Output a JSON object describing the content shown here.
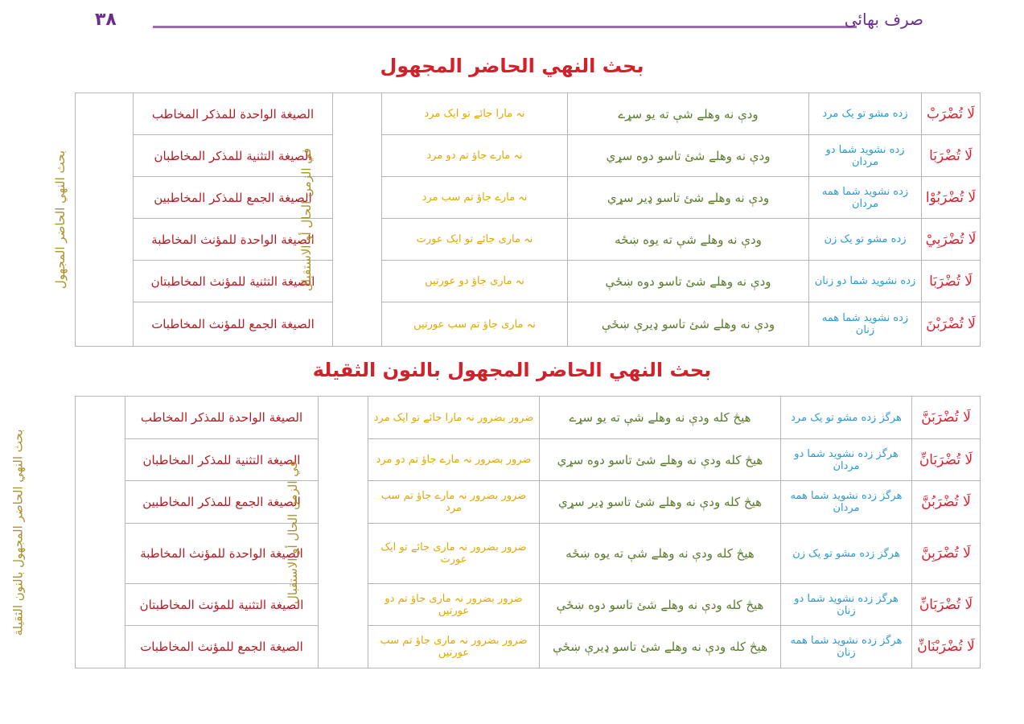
{
  "header": {
    "page_number": "۳۸",
    "book_title": "صرف بهائی"
  },
  "sections": [
    {
      "title": "بحث النهي الحاضر المجهول",
      "side_label": "بحث النهي الحاضر المجهول",
      "time_label": "في الزمن الحال أو الاستقبال",
      "rows": [
        {
          "verb": "لَا تُضْرَبْ",
          "persian": "زده مشو تو یک مرد",
          "pashto": "ودې نه وهلے شې ته يو سړے",
          "urdu": "نہ مارا جائے تو ایک مرد",
          "sigha": "الصيغة الواحدة للمذكر المخاطب"
        },
        {
          "verb": "لَا تُضْرَبَا",
          "persian": "زده نشوید شما دو مردان",
          "pashto": "ودې نه وهلے شئ تاسو دوه سړي",
          "urdu": "نہ مارے جاؤ تم دو مرد",
          "sigha": "الصيغة التثنية للمذكر المخاطبان"
        },
        {
          "verb": "لَا تُضْرَبُوْا",
          "persian": "زده نشوید شما همه مردان",
          "pashto": "ودې نه وهلے شئ تاسو ډير سړي",
          "urdu": "نہ مارے جاؤ تم سب مرد",
          "sigha": "الصيغة الجمع للمذكر المخاطبين"
        },
        {
          "verb": "لَا تُضْرَبِيْ",
          "persian": "زده مشو تو یک زن",
          "pashto": "ودې نه وهلے شې ته يوه ښځه",
          "urdu": "نہ ماری جائے تو ایک عورت",
          "sigha": "الصيغة الواحدة للمؤنث المخاطبة"
        },
        {
          "verb": "لَا تُضْرَبَا",
          "persian": "زده نشوید شما دو زنان",
          "pashto": "ودې نه وهلے شئ تاسو دوه ښځې",
          "urdu": "نہ ماری جاؤ دو عورتیں",
          "sigha": "الصيغة التثنية للمؤنث المخاطبتان"
        },
        {
          "verb": "لَا تُضْرَبْنَ",
          "persian": "زده نشوید شما همه زنان",
          "pashto": "ودې نه وهلے شئ تاسو ډيرې ښځې",
          "urdu": "نہ ماری جاؤ تم سب عورتیں",
          "sigha": "الصيغة الجمع للمؤنث المخاطبات"
        }
      ]
    },
    {
      "title": "بحث النهي الحاضر المجهول بالنون الثقيلة",
      "side_label": "بحث النهي الحاضر المجهول بالنون الثقيلة",
      "time_label": "في الزمن الحال أو الاستقبال",
      "rows": [
        {
          "verb": "لَا تُضْرَبَنَّ",
          "persian": "هرگز زده مشو تو یک مرد",
          "pashto": "هيڅ كله ودې نه وهلے شې ته يو سړے",
          "urdu": "ضرور بضرور نہ مارا جائے تو ایک مرد",
          "sigha": "الصيغة الواحدة للمذكر المخاطب"
        },
        {
          "verb": "لَا تُضْرَبَانِّ",
          "persian": "هرگز زده نشوید شما دو مردان",
          "pashto": "هيڅ كله ودې نه وهلے شئ تاسو دوه سړي",
          "urdu": "ضرور بضرور نہ مارے جاؤ تم دو مرد",
          "sigha": "الصيغة التثنية للمذكر المخاطبان"
        },
        {
          "verb": "لَا تُضْرَبُنَّ",
          "persian": "هرگز زده نشوید شما همه مردان",
          "pashto": "هيڅ كله ودې نه وهلے شئ تاسو ډير سړي",
          "urdu": "ضرور بضرور نہ مارے جاؤ تم سب مرد",
          "sigha": "الصيغة الجمع للمذكر المخاطبين"
        },
        {
          "verb": "لَا تُضْرَبِنَّ",
          "persian": "هرگز زده مشو تو یک زن",
          "pashto": "هيڅ كله ودې نه وهلے شې ته يوه ښځه",
          "urdu": "ضرور بضرور نہ ماری جائے تو ایک عورت",
          "sigha": "الصيغة الواحدة للمؤنث المخاطبة"
        },
        {
          "verb": "لَا تُضْرَبَانِّ",
          "persian": "هرگز زده نشوید شما دو زنان",
          "pashto": "هيڅ كله ودې نه وهلے شئ تاسو دوه ښځې",
          "urdu": "ضرور بضرور نہ ماری جاؤ تم دو عورتیں",
          "sigha": "الصيغة التثنية للمؤنث المخاطبتان"
        },
        {
          "verb": "لَا تُضْرَبْنَانِّ",
          "persian": "هرگز زده نشوید شما همه زنان",
          "pashto": "هيڅ كله ودې نه وهلے شئ تاسو ډيرې ښځې",
          "urdu": "ضرور بضرور نہ ماری جاؤ تم سب عورتیں",
          "sigha": "الصيغة الجمع للمؤنث المخاطبات"
        }
      ]
    }
  ]
}
